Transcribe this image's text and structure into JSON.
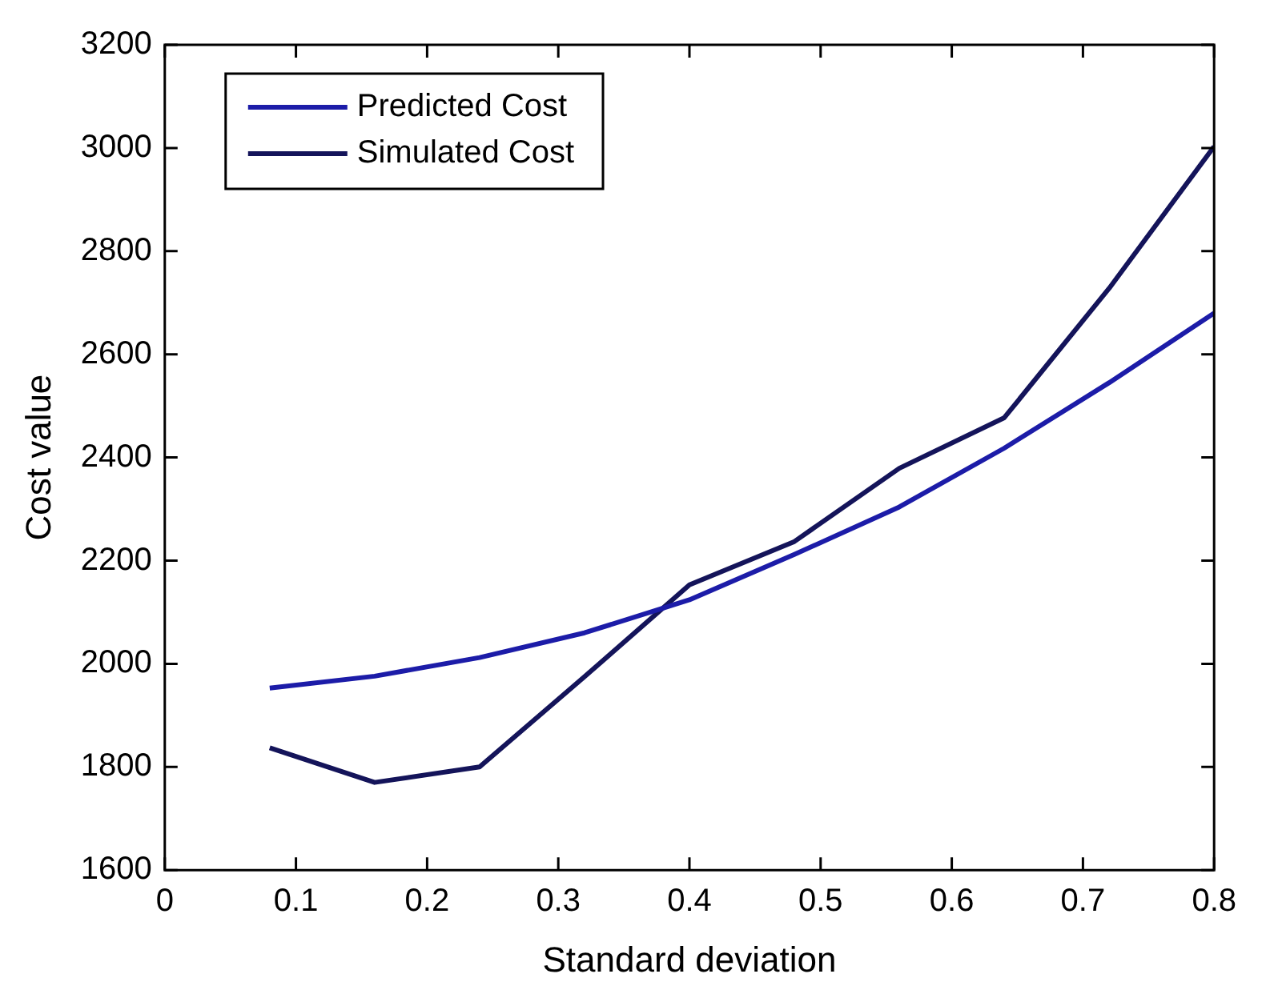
{
  "chart_data": {
    "type": "line",
    "xlabel": "Standard deviation",
    "ylabel": "Cost value",
    "x": [
      0.08,
      0.16,
      0.24,
      0.32,
      0.4,
      0.48,
      0.56,
      0.64,
      0.72,
      0.8
    ],
    "series": [
      {
        "name": "Predicted Cost",
        "color": "#1c1ca8",
        "values": [
          1953,
          1976,
          2012,
          2060,
          2124,
          2212,
          2304,
          2418,
          2545,
          2680
        ]
      },
      {
        "name": "Simulated Cost",
        "color": "#14145a",
        "values": [
          1837,
          1770,
          1800,
          1975,
          2153,
          2237,
          2379,
          2477,
          2728,
          3003
        ]
      }
    ],
    "xlim": [
      0,
      0.8
    ],
    "xticks": [
      0,
      0.1,
      0.2,
      0.3,
      0.4,
      0.5,
      0.6,
      0.7,
      0.8
    ],
    "ylim": [
      1600,
      3200
    ],
    "yticks": [
      1600,
      1800,
      2000,
      2200,
      2400,
      2600,
      2800,
      3000,
      3200
    ],
    "grid": false,
    "legend": "top left",
    "marker": "none",
    "line_style": "solid"
  }
}
